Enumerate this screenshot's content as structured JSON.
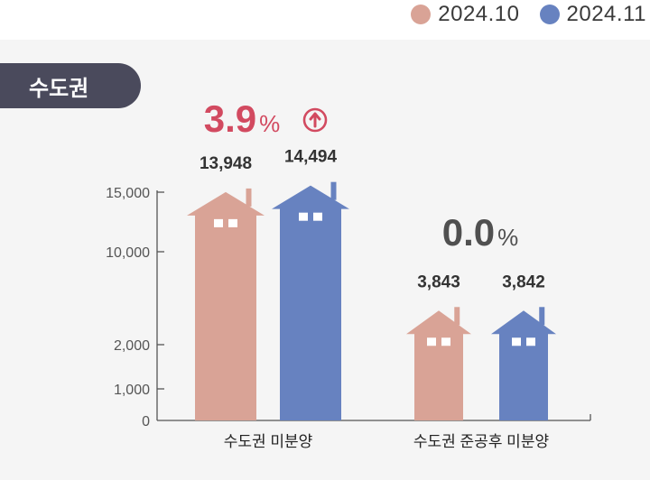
{
  "legend": [
    {
      "label": "2024.10",
      "color": "#d9a396"
    },
    {
      "label": "2024.11",
      "color": "#6782c0"
    }
  ],
  "region_tag": "수도권",
  "changes": [
    {
      "value": "3.9",
      "unit": "%",
      "direction": "up",
      "color": "#d24a60"
    },
    {
      "value": "0.0",
      "unit": "%",
      "direction": "none",
      "color": "#505050"
    }
  ],
  "chart_data": {
    "type": "bar",
    "categories": [
      "수도권 미분양",
      "수도권 준공후 미분양"
    ],
    "series": [
      {
        "name": "2024.10",
        "values": [
          13948,
          3843
        ],
        "labels": [
          "13,948",
          "3,843"
        ],
        "color": "#d9a396"
      },
      {
        "name": "2024.11",
        "values": [
          14494,
          3842
        ],
        "labels": [
          "14,494",
          "3,842"
        ],
        "color": "#6782c0"
      }
    ],
    "y_ticks": [
      0,
      1000,
      2000,
      10000,
      15000
    ],
    "y_tick_labels": [
      "0",
      "1,000",
      "2,000",
      "10,000",
      "15,000"
    ],
    "ylim": [
      0,
      15000
    ],
    "axis_break": true,
    "xlabel": "",
    "ylabel": "",
    "title": ""
  }
}
